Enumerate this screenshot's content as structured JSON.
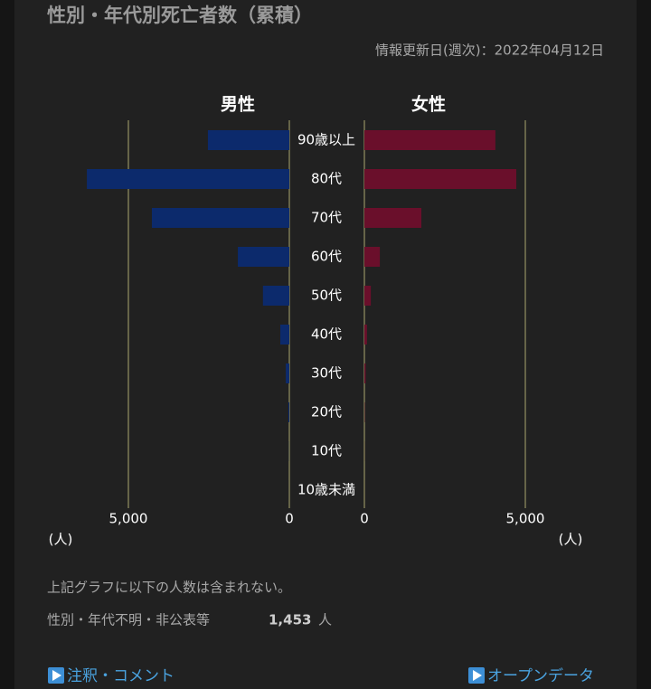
{
  "chart_data": {
    "type": "pyramid",
    "title": "性別・年代別死亡者数（累積）",
    "subtitle": "情報更新日(週次)：2022年04月12日",
    "categories": [
      "90歳以上",
      "80代",
      "70代",
      "60代",
      "50代",
      "40代",
      "30代",
      "20代",
      "10代",
      "10歳未満"
    ],
    "series": [
      {
        "name": "男性",
        "color": "#0c2a6c",
        "values": [
          2530,
          6290,
          4270,
          1600,
          820,
          280,
          110,
          30,
          3,
          1
        ]
      },
      {
        "name": "女性",
        "color": "#6a0f2b",
        "values": [
          4070,
          4720,
          1770,
          480,
          200,
          80,
          40,
          10,
          2,
          1
        ]
      }
    ],
    "xlim": [
      0,
      7500
    ],
    "xticks": [
      0,
      {
        "value": 5000,
        "label": "5,000"
      }
    ],
    "x_unit": "(人)",
    "grid": true
  },
  "footnote": {
    "text": "上記グラフに以下の人数は含まれない。",
    "label": "性別・年代不明・非公表等",
    "value_label": "1,453",
    "unit": "人"
  },
  "links": [
    "注釈・コメント",
    "オープンデータ"
  ]
}
